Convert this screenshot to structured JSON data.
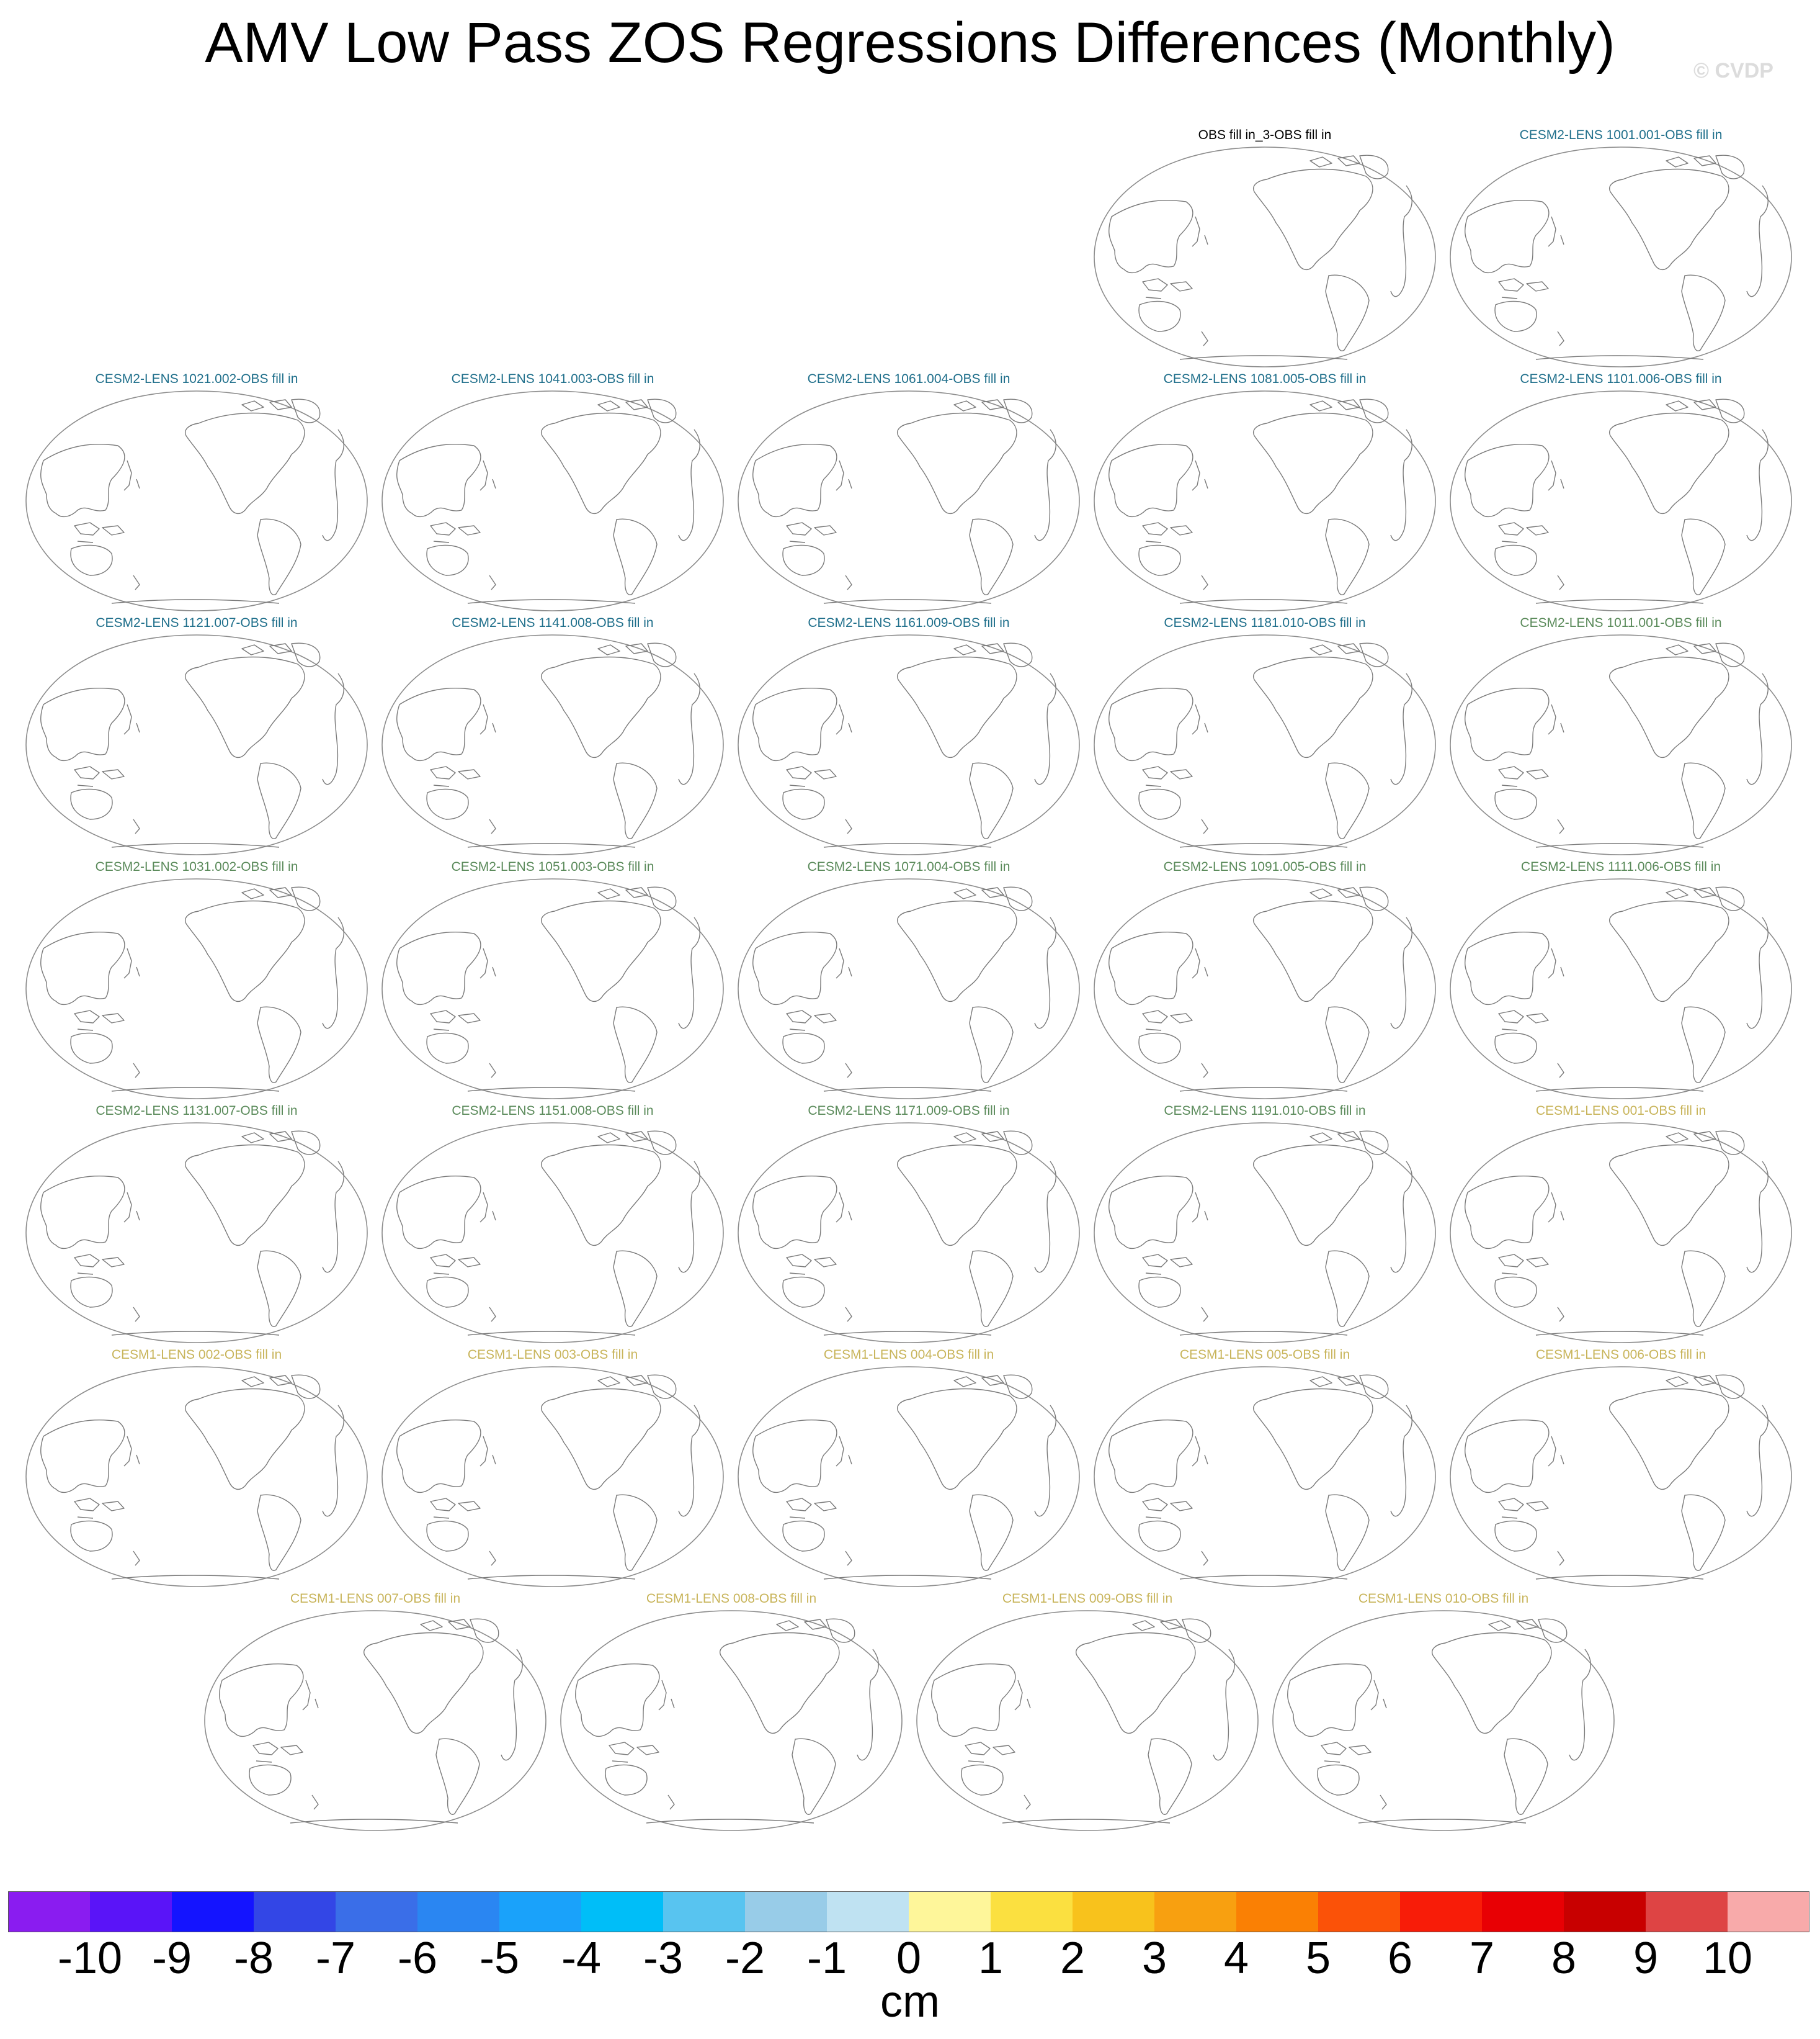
{
  "title": "AMV Low Pass ZOS Regressions Differences (Monthly)",
  "watermark": "© CVDP",
  "colors": {
    "obs": "#000000",
    "cesm2_first": "#1f6f8b",
    "cesm2_second": "#5a8a5a",
    "cesm1": "#c8b45a",
    "coastline": "#7a7a7a",
    "outline": "#8c8c8c"
  },
  "panels": [
    {
      "label": "OBS fill in_3-OBS fill in",
      "group": "obs"
    },
    {
      "label": "CESM2-LENS 1001.001-OBS fill in",
      "group": "cesm2_first"
    },
    {
      "label": "CESM2-LENS 1021.002-OBS fill in",
      "group": "cesm2_first"
    },
    {
      "label": "CESM2-LENS 1041.003-OBS fill in",
      "group": "cesm2_first"
    },
    {
      "label": "CESM2-LENS 1061.004-OBS fill in",
      "group": "cesm2_first"
    },
    {
      "label": "CESM2-LENS 1081.005-OBS fill in",
      "group": "cesm2_first"
    },
    {
      "label": "CESM2-LENS 1101.006-OBS fill in",
      "group": "cesm2_first"
    },
    {
      "label": "CESM2-LENS 1121.007-OBS fill in",
      "group": "cesm2_first"
    },
    {
      "label": "CESM2-LENS 1141.008-OBS fill in",
      "group": "cesm2_first"
    },
    {
      "label": "CESM2-LENS 1161.009-OBS fill in",
      "group": "cesm2_first"
    },
    {
      "label": "CESM2-LENS 1181.010-OBS fill in",
      "group": "cesm2_first"
    },
    {
      "label": "CESM2-LENS 1011.001-OBS fill in",
      "group": "cesm2_second"
    },
    {
      "label": "CESM2-LENS 1031.002-OBS fill in",
      "group": "cesm2_second"
    },
    {
      "label": "CESM2-LENS 1051.003-OBS fill in",
      "group": "cesm2_second"
    },
    {
      "label": "CESM2-LENS 1071.004-OBS fill in",
      "group": "cesm2_second"
    },
    {
      "label": "CESM2-LENS 1091.005-OBS fill in",
      "group": "cesm2_second"
    },
    {
      "label": "CESM2-LENS 1111.006-OBS fill in",
      "group": "cesm2_second"
    },
    {
      "label": "CESM2-LENS 1131.007-OBS fill in",
      "group": "cesm2_second"
    },
    {
      "label": "CESM2-LENS 1151.008-OBS fill in",
      "group": "cesm2_second"
    },
    {
      "label": "CESM2-LENS 1171.009-OBS fill in",
      "group": "cesm2_second"
    },
    {
      "label": "CESM2-LENS 1191.010-OBS fill in",
      "group": "cesm2_second"
    },
    {
      "label": "CESM1-LENS 001-OBS fill in",
      "group": "cesm1"
    },
    {
      "label": "CESM1-LENS 002-OBS fill in",
      "group": "cesm1"
    },
    {
      "label": "CESM1-LENS 003-OBS fill in",
      "group": "cesm1"
    },
    {
      "label": "CESM1-LENS 004-OBS fill in",
      "group": "cesm1"
    },
    {
      "label": "CESM1-LENS 005-OBS fill in",
      "group": "cesm1"
    },
    {
      "label": "CESM1-LENS 006-OBS fill in",
      "group": "cesm1"
    },
    {
      "label": "CESM1-LENS 007-OBS fill in",
      "group": "cesm1"
    },
    {
      "label": "CESM1-LENS 008-OBS fill in",
      "group": "cesm1"
    },
    {
      "label": "CESM1-LENS 009-OBS fill in",
      "group": "cesm1"
    },
    {
      "label": "CESM1-LENS 010-OBS fill in",
      "group": "cesm1"
    }
  ],
  "colorbar": {
    "units": "cm",
    "labels": [
      "-10",
      "-9",
      "-8",
      "-7",
      "-6",
      "-5",
      "-4",
      "-3",
      "-2",
      "-1",
      "0",
      "1",
      "2",
      "3",
      "4",
      "5",
      "6",
      "7",
      "8",
      "9",
      "10"
    ],
    "colors": [
      "#8a1cf0",
      "#5a14f8",
      "#1414ff",
      "#3346e6",
      "#3a6ee8",
      "#2a86f2",
      "#1aa2fa",
      "#00bef8",
      "#58c4f0",
      "#98cce8",
      "#bfe2f2",
      "#fef69a",
      "#fbe040",
      "#f8c21c",
      "#f8a010",
      "#fa8004",
      "#fb5208",
      "#f81c08",
      "#e80004",
      "#c80000",
      "#de4444",
      "#f8aaaa"
    ]
  }
}
